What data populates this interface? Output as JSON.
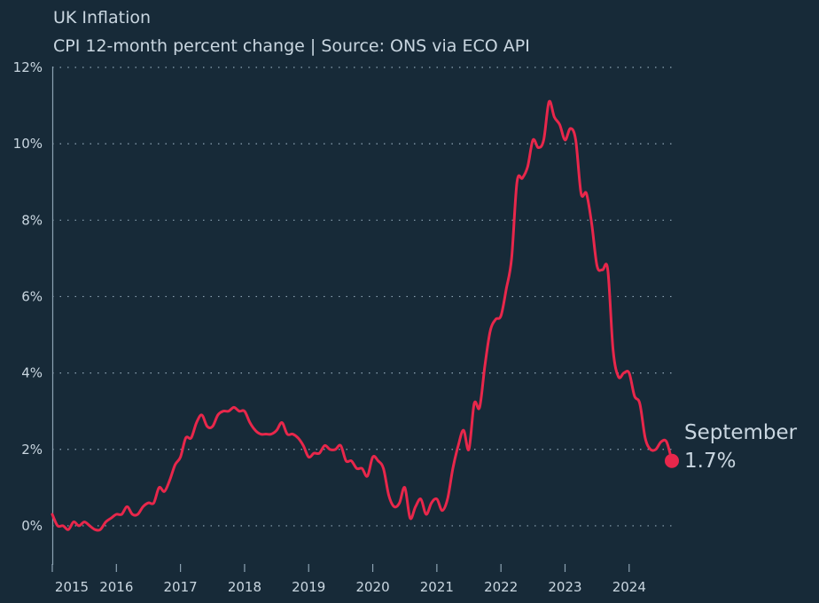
{
  "header": {
    "title": "UK Inflation",
    "subtitle": "CPI 12-month percent change | Source: ONS via ECO API"
  },
  "colors": {
    "background": "#172a38",
    "line": "#e8274b",
    "text": "#c9d6e0",
    "grid": "#8da3b3"
  },
  "chart_data": {
    "type": "line",
    "title": "UK Inflation",
    "subtitle": "CPI 12-month percent change | Source: ONS via ECO API",
    "xlabel": "",
    "ylabel": "",
    "xlim": [
      "2015-01",
      "2024-09"
    ],
    "ylim": [
      -1,
      12
    ],
    "grid": true,
    "yticks": [
      0,
      2,
      4,
      6,
      8,
      10,
      12
    ],
    "ytick_labels": [
      "0%",
      "2%",
      "4%",
      "6%",
      "8%",
      "10%",
      "12%"
    ],
    "xticks": [
      "2015-01",
      "2016-01",
      "2017-01",
      "2018-01",
      "2019-01",
      "2020-01",
      "2021-01",
      "2022-01",
      "2023-01",
      "2024-01"
    ],
    "xtick_labels": [
      "2015",
      "2016",
      "2017",
      "2018",
      "2019",
      "2020",
      "2021",
      "2022",
      "2023",
      "2024"
    ],
    "end_label": {
      "month": "September",
      "value": "1.7%"
    },
    "series": [
      {
        "x": [
          "2015-01",
          "2015-02",
          "2015-03",
          "2015-04",
          "2015-05",
          "2015-06",
          "2015-07",
          "2015-08",
          "2015-09",
          "2015-10",
          "2015-11",
          "2015-12",
          "2016-01",
          "2016-02",
          "2016-03",
          "2016-04",
          "2016-05",
          "2016-06",
          "2016-07",
          "2016-08",
          "2016-09",
          "2016-10",
          "2016-11",
          "2016-12",
          "2017-01",
          "2017-02",
          "2017-03",
          "2017-04",
          "2017-05",
          "2017-06",
          "2017-07",
          "2017-08",
          "2017-09",
          "2017-10",
          "2017-11",
          "2017-12",
          "2018-01",
          "2018-02",
          "2018-03",
          "2018-04",
          "2018-05",
          "2018-06",
          "2018-07",
          "2018-08",
          "2018-09",
          "2018-10",
          "2018-11",
          "2018-12",
          "2019-01",
          "2019-02",
          "2019-03",
          "2019-04",
          "2019-05",
          "2019-06",
          "2019-07",
          "2019-08",
          "2019-09",
          "2019-10",
          "2019-11",
          "2019-12",
          "2020-01",
          "2020-02",
          "2020-03",
          "2020-04",
          "2020-05",
          "2020-06",
          "2020-07",
          "2020-08",
          "2020-09",
          "2020-10",
          "2020-11",
          "2020-12",
          "2021-01",
          "2021-02",
          "2021-03",
          "2021-04",
          "2021-05",
          "2021-06",
          "2021-07",
          "2021-08",
          "2021-09",
          "2021-10",
          "2021-11",
          "2021-12",
          "2022-01",
          "2022-02",
          "2022-03",
          "2022-04",
          "2022-05",
          "2022-06",
          "2022-07",
          "2022-08",
          "2022-09",
          "2022-10",
          "2022-11",
          "2022-12",
          "2023-01",
          "2023-02",
          "2023-03",
          "2023-04",
          "2023-05",
          "2023-06",
          "2023-07",
          "2023-08",
          "2023-09",
          "2023-10",
          "2023-11",
          "2023-12",
          "2024-01",
          "2024-02",
          "2024-03",
          "2024-04",
          "2024-05",
          "2024-06",
          "2024-07",
          "2024-08",
          "2024-09"
        ],
        "values": [
          0.3,
          0.0,
          0.0,
          -0.1,
          0.1,
          0.0,
          0.1,
          0.0,
          -0.1,
          -0.1,
          0.1,
          0.2,
          0.3,
          0.3,
          0.5,
          0.3,
          0.3,
          0.5,
          0.6,
          0.6,
          1.0,
          0.9,
          1.2,
          1.6,
          1.8,
          2.3,
          2.3,
          2.7,
          2.9,
          2.6,
          2.6,
          2.9,
          3.0,
          3.0,
          3.1,
          3.0,
          3.0,
          2.7,
          2.5,
          2.4,
          2.4,
          2.4,
          2.5,
          2.7,
          2.4,
          2.4,
          2.3,
          2.1,
          1.8,
          1.9,
          1.9,
          2.1,
          2.0,
          2.0,
          2.1,
          1.7,
          1.7,
          1.5,
          1.5,
          1.3,
          1.8,
          1.7,
          1.5,
          0.8,
          0.5,
          0.6,
          1.0,
          0.2,
          0.5,
          0.7,
          0.3,
          0.6,
          0.7,
          0.4,
          0.7,
          1.5,
          2.1,
          2.5,
          2.0,
          3.2,
          3.1,
          4.2,
          5.1,
          5.4,
          5.5,
          6.2,
          7.0,
          9.0,
          9.1,
          9.4,
          10.1,
          9.9,
          10.1,
          11.1,
          10.7,
          10.5,
          10.1,
          10.4,
          10.1,
          8.7,
          8.7,
          7.9,
          6.8,
          6.7,
          6.7,
          4.6,
          3.9,
          4.0,
          4.0,
          3.4,
          3.2,
          2.3,
          2.0,
          2.0,
          2.2,
          2.2,
          1.7
        ]
      }
    ]
  }
}
